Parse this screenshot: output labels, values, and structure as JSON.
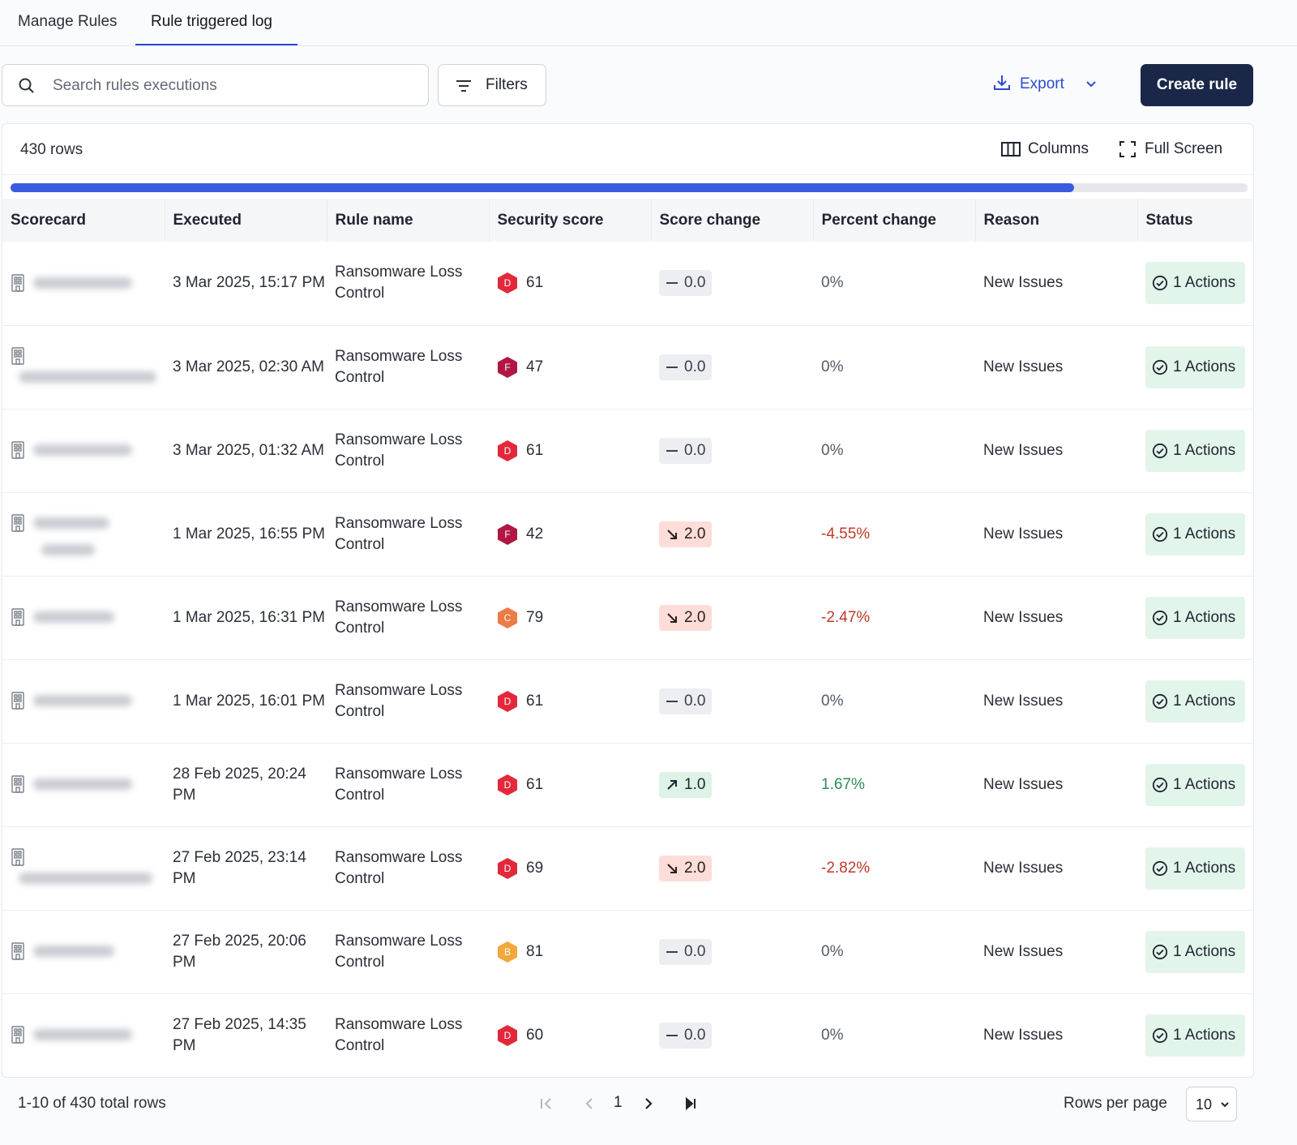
{
  "tabs": [
    {
      "label": "Manage Rules",
      "active": false
    },
    {
      "label": "Rule triggered log",
      "active": true
    }
  ],
  "toolbar": {
    "search_placeholder": "Search rules executions",
    "filters_label": "Filters",
    "export_label": "Export",
    "create_label": "Create rule"
  },
  "panel": {
    "row_count": "430 rows",
    "columns_label": "Columns",
    "fullscreen_label": "Full Screen",
    "progress_fraction": 0.86
  },
  "table": {
    "headers": [
      "Scorecard",
      "Executed",
      "Rule name",
      "Security score",
      "Score change",
      "Percent change",
      "Reason",
      "Status"
    ],
    "rows": [
      {
        "executed": "3 Mar 2025, 15:17 PM",
        "rule": "Ransomware Loss Control",
        "grade": "D",
        "score": "61",
        "change": "0.0",
        "dir": "none",
        "pct": "0%",
        "reason": "New Issues",
        "status": "1 Actions"
      },
      {
        "executed": "3 Mar 2025, 02:30 AM",
        "rule": "Ransomware Loss Control",
        "grade": "F",
        "score": "47",
        "change": "0.0",
        "dir": "none",
        "pct": "0%",
        "reason": "New Issues",
        "status": "1 Actions"
      },
      {
        "executed": "3 Mar 2025, 01:32 AM",
        "rule": "Ransomware Loss Control",
        "grade": "D",
        "score": "61",
        "change": "0.0",
        "dir": "none",
        "pct": "0%",
        "reason": "New Issues",
        "status": "1 Actions"
      },
      {
        "executed": "1 Mar 2025, 16:55 PM",
        "rule": "Ransomware Loss Control",
        "grade": "F",
        "score": "42",
        "change": "2.0",
        "dir": "down",
        "pct": "-4.55%",
        "reason": "New Issues",
        "status": "1 Actions"
      },
      {
        "executed": "1 Mar 2025, 16:31 PM",
        "rule": "Ransomware Loss Control",
        "grade": "C",
        "score": "79",
        "change": "2.0",
        "dir": "down",
        "pct": "-2.47%",
        "reason": "New Issues",
        "status": "1 Actions"
      },
      {
        "executed": "1 Mar 2025, 16:01 PM",
        "rule": "Ransomware Loss Control",
        "grade": "D",
        "score": "61",
        "change": "0.0",
        "dir": "none",
        "pct": "0%",
        "reason": "New Issues",
        "status": "1 Actions"
      },
      {
        "executed": "28 Feb 2025, 20:24 PM",
        "rule": "Ransomware Loss Control",
        "grade": "D",
        "score": "61",
        "change": "1.0",
        "dir": "up",
        "pct": "1.67%",
        "reason": "New Issues",
        "status": "1 Actions"
      },
      {
        "executed": "27 Feb 2025, 23:14 PM",
        "rule": "Ransomware Loss Control",
        "grade": "D",
        "score": "69",
        "change": "2.0",
        "dir": "down",
        "pct": "-2.82%",
        "reason": "New Issues",
        "status": "1 Actions"
      },
      {
        "executed": "27 Feb 2025, 20:06 PM",
        "rule": "Ransomware Loss Control",
        "grade": "B",
        "score": "81",
        "change": "0.0",
        "dir": "none",
        "pct": "0%",
        "reason": "New Issues",
        "status": "1 Actions"
      },
      {
        "executed": "27 Feb 2025, 14:35 PM",
        "rule": "Ransomware Loss Control",
        "grade": "D",
        "score": "60",
        "change": "0.0",
        "dir": "none",
        "pct": "0%",
        "reason": "New Issues",
        "status": "1 Actions"
      }
    ]
  },
  "grade_colors": {
    "B": "#f3a83b",
    "C": "#ee7a46",
    "D": "#e4283b",
    "F": "#b01742"
  },
  "footer": {
    "total_label": "1-10 of 430 total rows",
    "page": "1",
    "rows_per_page_label": "Rows per page",
    "rows_per_page": "10"
  }
}
